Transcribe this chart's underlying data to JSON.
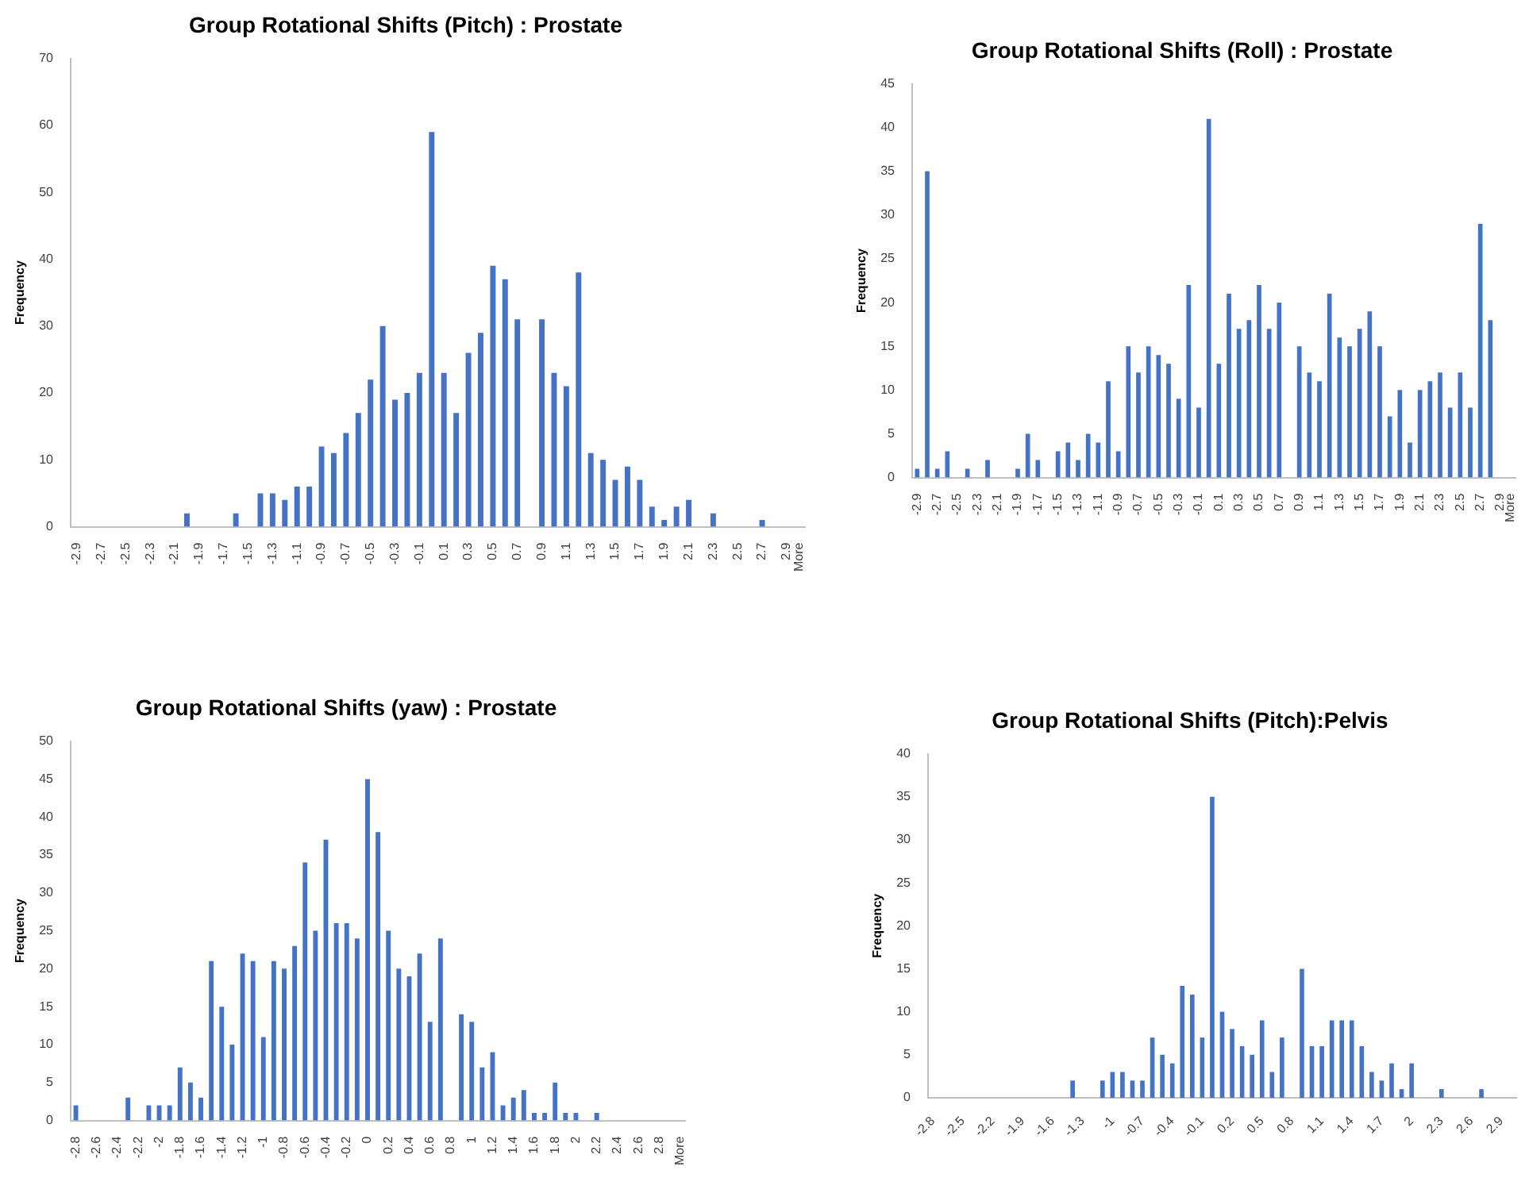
{
  "chart_data": [
    {
      "type": "bar",
      "title": "Group Rotational Shifts (Pitch) : Prostate",
      "ylabel": "Frequency",
      "color": "#4472c4",
      "ylim": [
        0,
        70
      ],
      "yticks": [
        0,
        10,
        20,
        30,
        40,
        50,
        60,
        70
      ],
      "categories": [
        "-2.9",
        null,
        "-2.7",
        null,
        "-2.5",
        null,
        "-2.3",
        null,
        "-2.1",
        null,
        "-1.9",
        null,
        "-1.7",
        null,
        "-1.5",
        null,
        "-1.3",
        null,
        "-1.1",
        null,
        "-0.9",
        null,
        "-0.7",
        null,
        "-0.5",
        null,
        "-0.3",
        null,
        "-0.1",
        null,
        "0.1",
        null,
        "0.3",
        null,
        "0.5",
        null,
        "0.7",
        null,
        "0.9",
        null,
        "1.1",
        null,
        "1.3",
        null,
        "1.5",
        null,
        "1.7",
        null,
        "1.9",
        null,
        "2.1",
        null,
        "2.3",
        null,
        "2.5",
        null,
        "2.7",
        null,
        "2.9",
        "More"
      ],
      "values": [
        0,
        0,
        0,
        0,
        0,
        0,
        0,
        0,
        0,
        2,
        0,
        0,
        0,
        2,
        0,
        5,
        5,
        4,
        6,
        6,
        12,
        11,
        14,
        17,
        22,
        30,
        19,
        20,
        23,
        59,
        23,
        17,
        26,
        29,
        39,
        37,
        31,
        0,
        31,
        23,
        21,
        38,
        11,
        10,
        7,
        9,
        7,
        3,
        1,
        3,
        4,
        0,
        2,
        0,
        0,
        0,
        1,
        0,
        0,
        0
      ]
    },
    {
      "type": "bar",
      "title": "Group Rotational Shifts (Roll) : Prostate",
      "ylabel": "Frequency",
      "color": "#4472c4",
      "ylim": [
        0,
        45
      ],
      "yticks": [
        0,
        5,
        10,
        15,
        20,
        25,
        30,
        35,
        40,
        45
      ],
      "categories": [
        "-2.9",
        null,
        "-2.7",
        null,
        "-2.5",
        null,
        "-2.3",
        null,
        "-2.1",
        null,
        "-1.9",
        null,
        "-1.7",
        null,
        "-1.5",
        null,
        "-1.3",
        null,
        "-1.1",
        null,
        "-0.9",
        null,
        "-0.7",
        null,
        "-0.5",
        null,
        "-0.3",
        null,
        "-0.1",
        null,
        "0.1",
        null,
        "0.3",
        null,
        "0.5",
        null,
        "0.7",
        null,
        "0.9",
        null,
        "1.1",
        null,
        "1.3",
        null,
        "1.5",
        null,
        "1.7",
        null,
        "1.9",
        null,
        "2.1",
        null,
        "2.3",
        null,
        "2.5",
        null,
        "2.7",
        null,
        "2.9",
        "More"
      ],
      "values": [
        1,
        35,
        1,
        3,
        0,
        1,
        0,
        2,
        0,
        0,
        1,
        5,
        2,
        0,
        3,
        4,
        2,
        5,
        4,
        11,
        3,
        15,
        12,
        15,
        14,
        13,
        9,
        22,
        8,
        41,
        13,
        21,
        17,
        18,
        22,
        17,
        20,
        0,
        15,
        12,
        11,
        21,
        16,
        15,
        17,
        19,
        15,
        7,
        10,
        4,
        10,
        11,
        12,
        8,
        12,
        8,
        29,
        18,
        0,
        0
      ]
    },
    {
      "type": "bar",
      "title": "Group Rotational Shifts (yaw) : Prostate",
      "ylabel": "Frequency",
      "color": "#4472c4",
      "ylim": [
        0,
        50
      ],
      "yticks": [
        0,
        5,
        10,
        15,
        20,
        25,
        30,
        35,
        40,
        45,
        50
      ],
      "categories": [
        "-2.8",
        null,
        "-2.6",
        null,
        "-2.4",
        null,
        "-2.2",
        null,
        "-2",
        null,
        "-1.8",
        null,
        "-1.6",
        null,
        "-1.4",
        null,
        "-1.2",
        null,
        "-1",
        null,
        "-0.8",
        null,
        "-0.6",
        null,
        "-0.4",
        null,
        "-0.2",
        null,
        "0",
        null,
        "0.2",
        null,
        "0.4",
        null,
        "0.6",
        null,
        "0.8",
        null,
        "1",
        null,
        "1.2",
        null,
        "1.4",
        null,
        "1.6",
        null,
        "1.8",
        null,
        "2",
        null,
        "2.2",
        null,
        "2.4",
        null,
        "2.6",
        null,
        "2.8",
        null,
        "More"
      ],
      "values": [
        2,
        0,
        0,
        0,
        0,
        3,
        0,
        2,
        2,
        2,
        7,
        5,
        3,
        21,
        15,
        10,
        22,
        21,
        11,
        21,
        20,
        23,
        34,
        25,
        37,
        26,
        26,
        24,
        45,
        38,
        25,
        20,
        19,
        22,
        13,
        24,
        0,
        14,
        13,
        7,
        9,
        2,
        3,
        4,
        1,
        1,
        5,
        1,
        1,
        0,
        1,
        0,
        0,
        0,
        0,
        0,
        0,
        0,
        0
      ]
    },
    {
      "type": "bar",
      "title": "Group Rotational Shifts (Pitch):Pelvis",
      "ylabel": "Frequency",
      "color": "#4472c4",
      "ylim": [
        0,
        40
      ],
      "yticks": [
        0,
        5,
        10,
        15,
        20,
        25,
        30,
        35,
        40
      ],
      "categories": [
        "-2.8",
        null,
        null,
        "-2.5",
        null,
        null,
        "-2.2",
        null,
        null,
        "-1.9",
        null,
        null,
        "-1.6",
        null,
        null,
        "-1.3",
        null,
        null,
        "-1",
        null,
        null,
        "-0.7",
        null,
        null,
        "-0.4",
        null,
        null,
        "-0.1",
        null,
        null,
        "0.2",
        null,
        null,
        "0.5",
        null,
        null,
        "0.8",
        null,
        null,
        "1.1",
        null,
        null,
        "1.4",
        null,
        null,
        "1.7",
        null,
        null,
        "2",
        null,
        null,
        "2.3",
        null,
        null,
        "2.6",
        null,
        null,
        "2.9",
        null
      ],
      "values": [
        0,
        0,
        0,
        0,
        0,
        0,
        0,
        0,
        0,
        0,
        0,
        0,
        0,
        0,
        2,
        0,
        0,
        2,
        3,
        3,
        2,
        2,
        7,
        5,
        4,
        13,
        12,
        7,
        35,
        10,
        8,
        6,
        5,
        9,
        3,
        7,
        0,
        15,
        6,
        6,
        9,
        9,
        9,
        6,
        3,
        2,
        4,
        1,
        4,
        0,
        0,
        1,
        0,
        0,
        0,
        1,
        0,
        0,
        0
      ]
    }
  ]
}
